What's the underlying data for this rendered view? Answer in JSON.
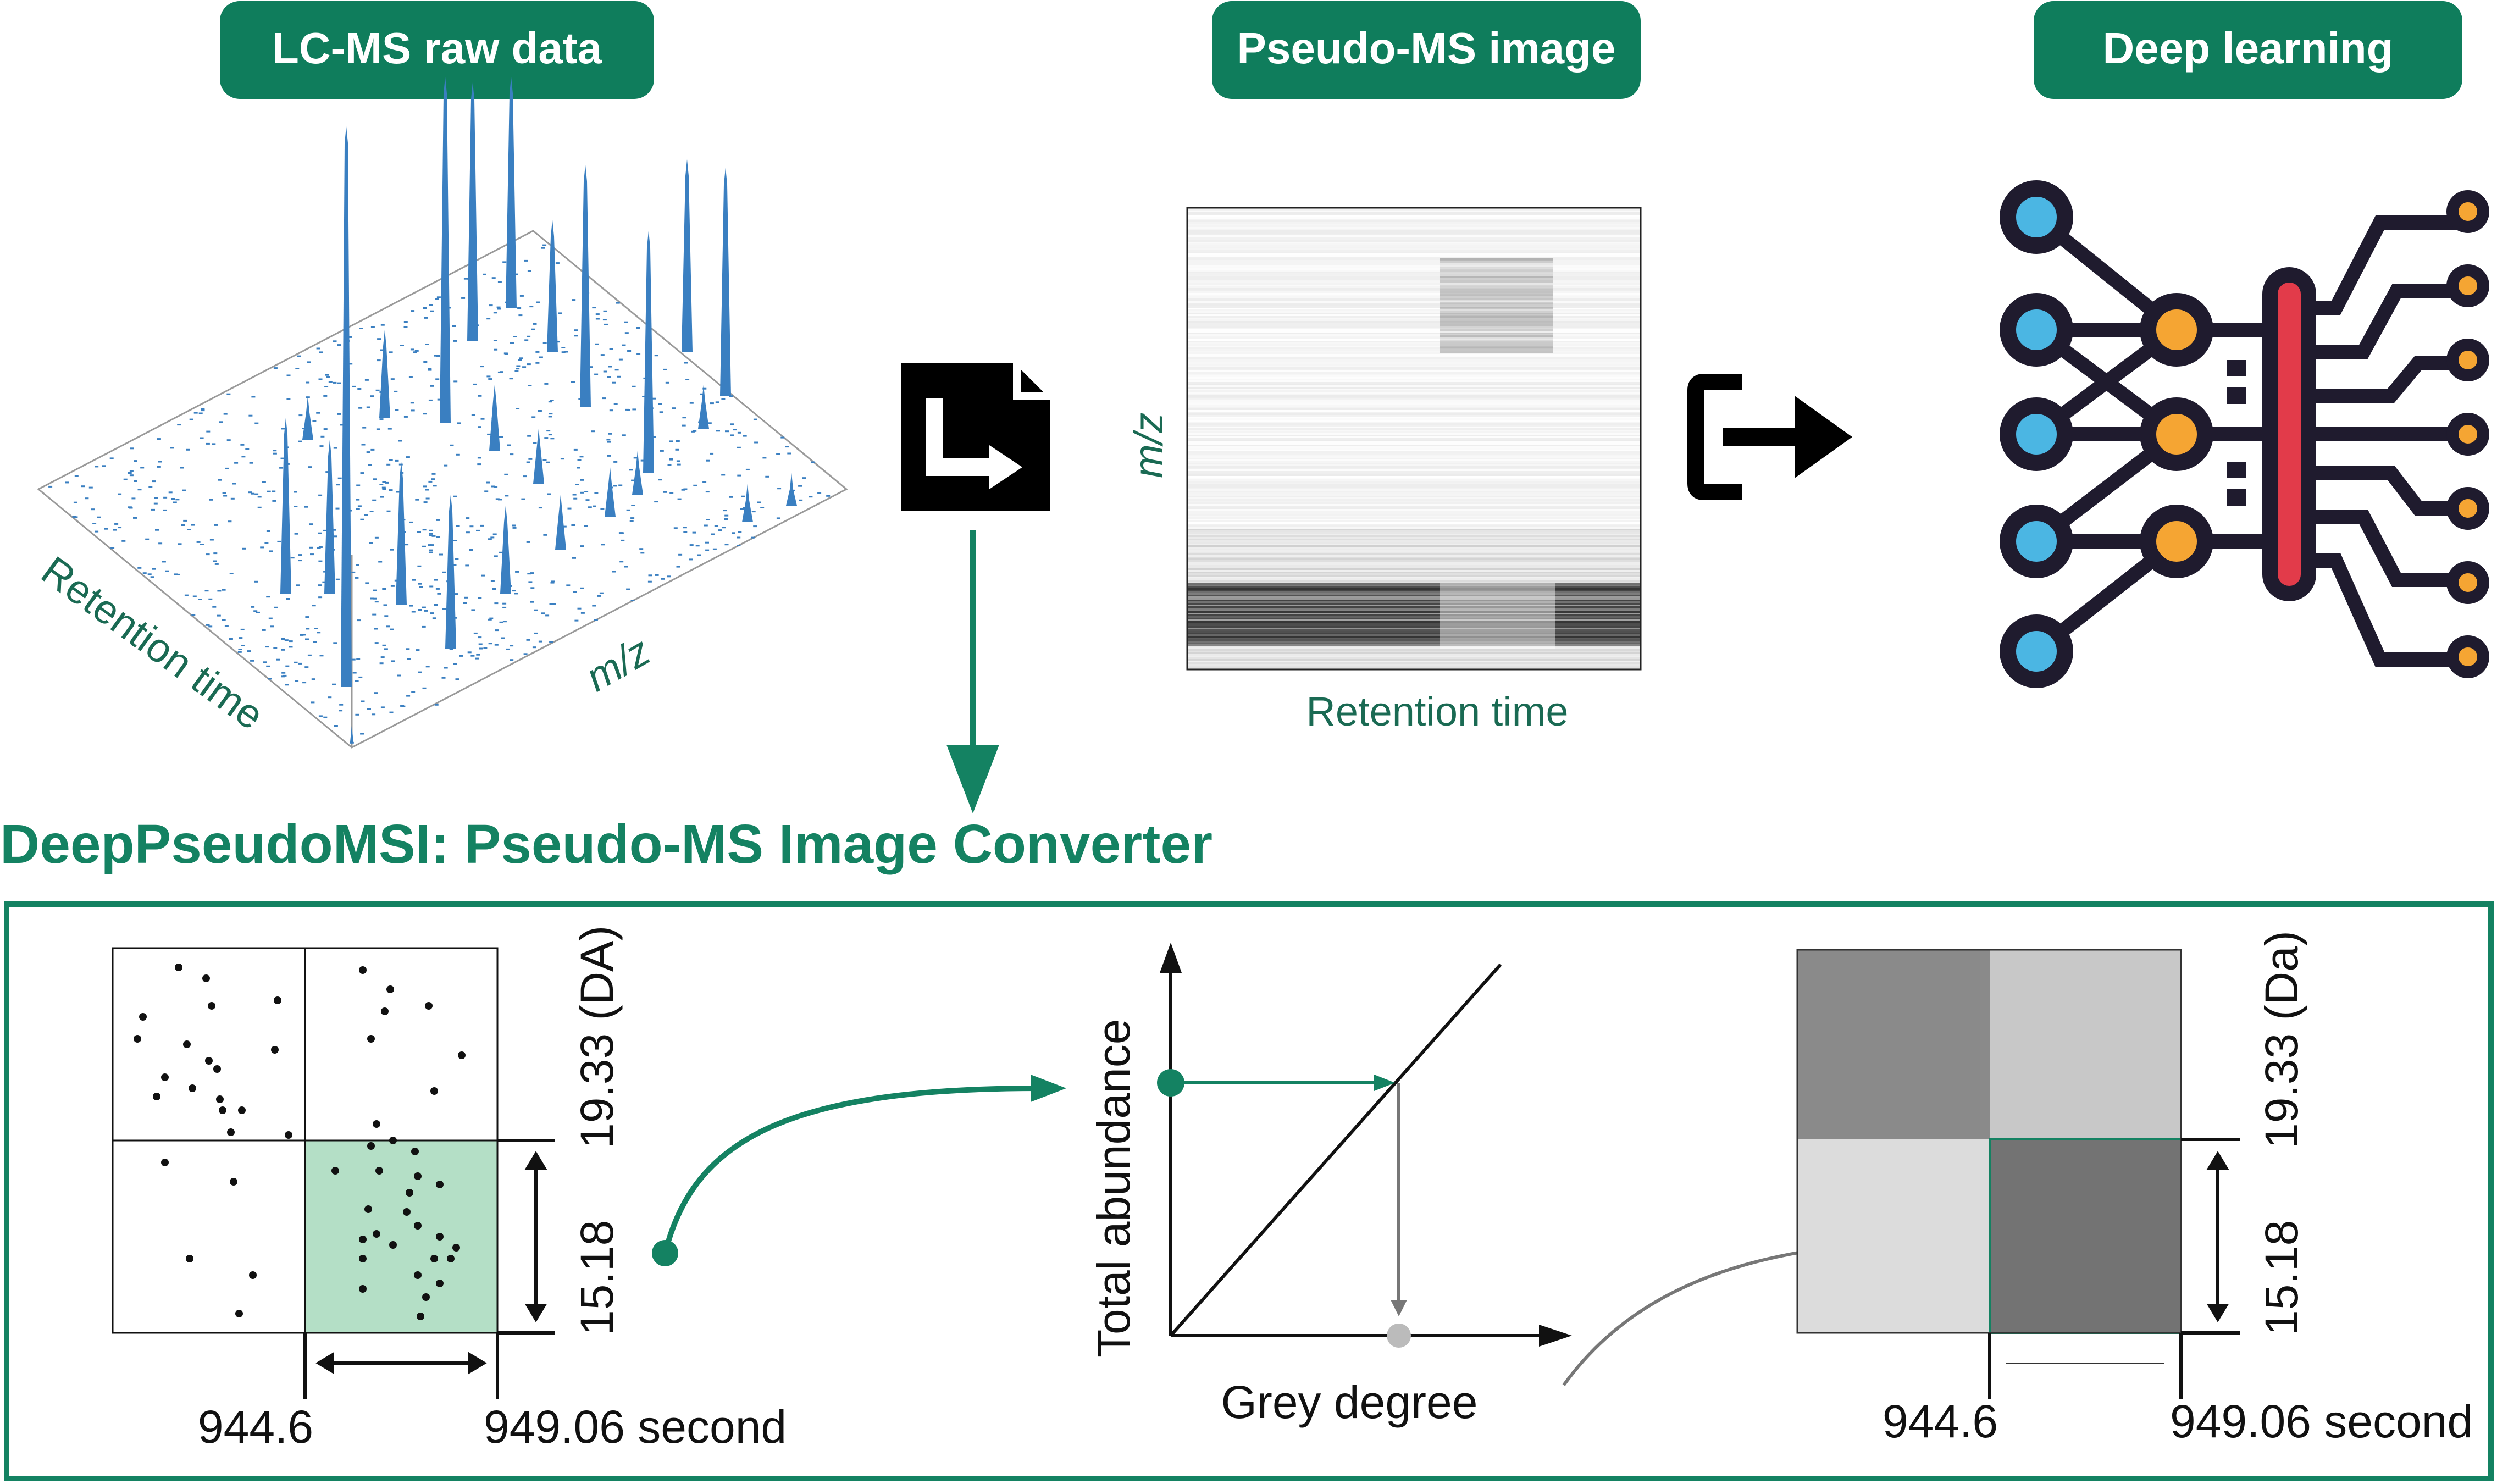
{
  "colors": {
    "accent_green": "#148262",
    "pill_green": "#0f7d5c",
    "peak_blue": "#3a7fc1",
    "neuron_blue": "#4bb6e3",
    "neuron_orange": "#f5a533",
    "bar_red": "#e23b4a",
    "dark": "#1f1b2e",
    "highlight_fill": "#b4dfc6",
    "grey_path": "#777777"
  },
  "icons": {
    "convert_icon": "file-convert-icon",
    "export_icon": "export-arrow-icon",
    "network_icon": "neural-network-icon"
  },
  "top": {
    "raw_label": "LC-MS raw data",
    "pseudo_label": "Pseudo-MS image",
    "deep_label": "Deep learning",
    "raw_axis_rt": "Retention time",
    "raw_axis_mz": "m/z",
    "img_axis_mz": "m/z",
    "img_axis_rt": "Retention time"
  },
  "converter": {
    "title": "DeepPseudoMSI: Pseudo-MS Image Converter",
    "grid": {
      "mz_upper": "19.33 (DA)",
      "mz_lower": "15.18",
      "rt_left": "944.6",
      "rt_right": "949.06 second"
    },
    "mapping": {
      "ylabel": "Total abundance",
      "xlabel": "Grey degree"
    },
    "output": {
      "mz_upper": "19.33 (Da)",
      "mz_lower": "15.18",
      "rt_left": "944.6",
      "rt_right": "949.06 second"
    }
  }
}
